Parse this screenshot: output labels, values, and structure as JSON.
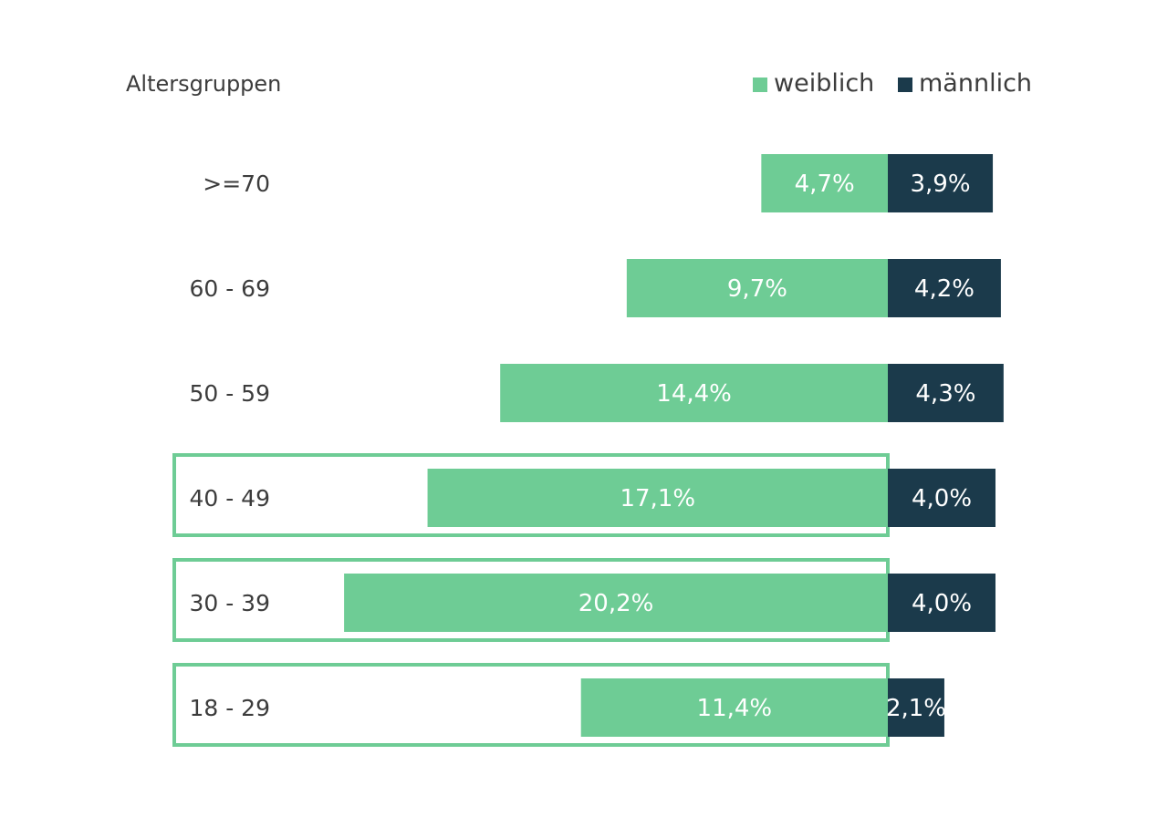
{
  "chart_data": {
    "type": "bar",
    "orientation": "horizontal",
    "stacked": true,
    "ylabel": "Altersgruppen",
    "categories": [
      ">=70",
      "60 - 69",
      "50 - 59",
      "40 - 49",
      "30 - 39",
      "18 - 29"
    ],
    "series": [
      {
        "name": "weiblich",
        "color": "#6ecc95",
        "values": [
          4.7,
          9.7,
          14.4,
          17.1,
          20.2,
          11.4
        ],
        "labels": [
          "4,7%",
          "9,7%",
          "14,4%",
          "17,1%",
          "20,2%",
          "11,4%"
        ]
      },
      {
        "name": "männlich",
        "color": "#1b3a4b",
        "values": [
          3.9,
          4.2,
          4.3,
          4.0,
          4.0,
          2.1
        ],
        "labels": [
          "3,9%",
          "4,2%",
          "4,3%",
          "4,0%",
          "4,0%",
          "2,1%"
        ]
      }
    ],
    "legend": "top-right",
    "grid": false,
    "highlighted_categories": [
      "40 - 49",
      "30 - 39",
      "18 - 29"
    ],
    "highlight_color": "#6ecc95"
  }
}
